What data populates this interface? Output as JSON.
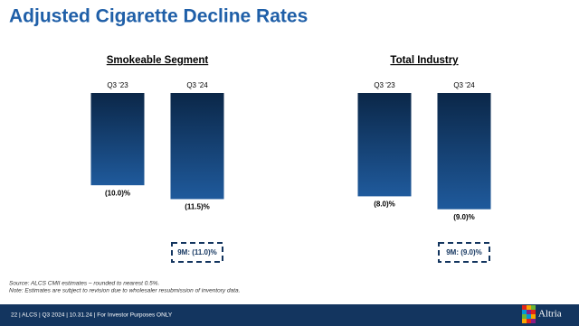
{
  "title": "Adjusted Cigarette Decline Rates",
  "chart_data": [
    {
      "type": "bar",
      "title": "Smokeable Segment",
      "categories": [
        "Q3 '23",
        "Q3 '24"
      ],
      "values": [
        -10.0,
        -11.5
      ],
      "value_labels": [
        "(10.0)%",
        "(11.5)%"
      ],
      "color": "#1f5a9c",
      "ylim": [
        -14,
        0
      ],
      "annotation": "9M: (11.0)%"
    },
    {
      "type": "bar",
      "title": "Total Industry",
      "categories": [
        "Q3 '23",
        "Q3 '24"
      ],
      "values": [
        -8.0,
        -9.0
      ],
      "value_labels": [
        "(8.0)%",
        "(9.0)%"
      ],
      "color": "#1f5a9c",
      "ylim": [
        -10,
        0
      ],
      "annotation": "9M: (9.0)%"
    }
  ],
  "source": [
    "Source: ALCS CMII estimates – rounded to nearest 0.5%.",
    "Note: Estimates are subject to revision due to wholesaler resubmission of inventory data."
  ],
  "footer": "22 | ALCS | Q3 2024 | 10.31.24 | For Investor Purposes ONLY",
  "logo": "Altria"
}
